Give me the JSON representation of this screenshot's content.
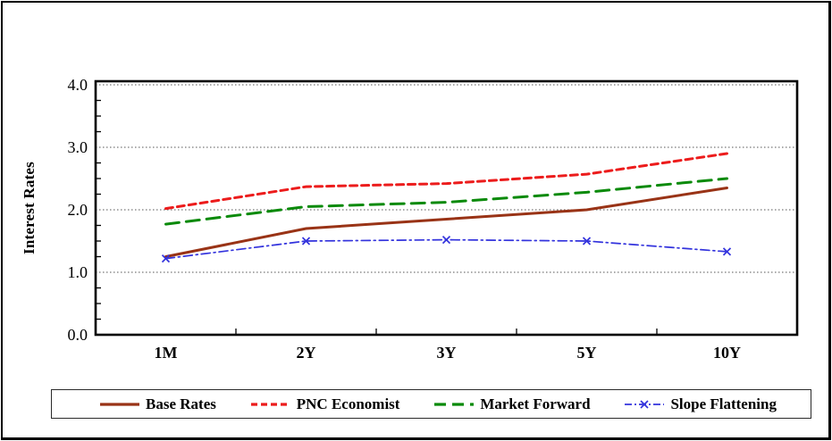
{
  "figure": {
    "title": "",
    "background": "#ffffff",
    "frame_color": "#000000"
  },
  "chart_data": {
    "type": "line",
    "title": "",
    "xlabel": "",
    "ylabel": "Interest Rates",
    "categories": [
      "1M",
      "2Y",
      "3Y",
      "5Y",
      "10Y"
    ],
    "series": [
      {
        "name": "Base Rates",
        "color": "#993316",
        "style": "solid",
        "line_width": 3,
        "marker": "none",
        "values": [
          1.25,
          1.7,
          1.85,
          2.0,
          2.35
        ]
      },
      {
        "name": "PNC Economist",
        "color": "#EC1C1C",
        "style": "dashed",
        "line_width": 3,
        "marker": "none",
        "values": [
          2.02,
          2.37,
          2.42,
          2.57,
          2.9
        ]
      },
      {
        "name": "Market Forward",
        "color": "#0A8A0A",
        "style": "longdash",
        "line_width": 3,
        "marker": "none",
        "values": [
          1.77,
          2.05,
          2.12,
          2.28,
          2.5
        ]
      },
      {
        "name": "Slope Flattening",
        "color": "#3333DD",
        "style": "dashdot",
        "line_width": 1.7,
        "marker": "x",
        "values": [
          1.22,
          1.5,
          1.52,
          1.5,
          1.33
        ]
      }
    ],
    "ylim": [
      0.0,
      4.0
    ],
    "yticks": [
      "0.0",
      "1.0",
      "2.0",
      "3.0",
      "4.0"
    ],
    "ytick_values": [
      0,
      1,
      2,
      3,
      4
    ],
    "minor_tick_step": 0.25,
    "grid": "horizontal-dotted",
    "grid_color": "#555555",
    "legend_position": "bottom"
  }
}
